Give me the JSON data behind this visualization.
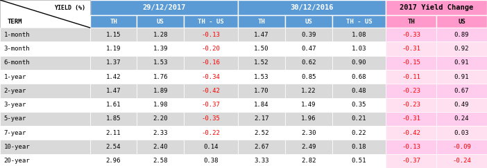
{
  "terms": [
    "1-month",
    "3-month",
    "6-month",
    "1-year",
    "2-year",
    "3-year",
    "5-year",
    "7-year",
    "10-year",
    "20-year"
  ],
  "col_2017_TH": [
    1.15,
    1.19,
    1.37,
    1.42,
    1.47,
    1.61,
    1.85,
    2.11,
    2.54,
    2.96
  ],
  "col_2017_US": [
    1.28,
    1.39,
    1.53,
    1.76,
    1.89,
    1.98,
    2.2,
    2.33,
    2.4,
    2.58
  ],
  "col_2017_THUS": [
    -0.13,
    -0.2,
    -0.16,
    -0.34,
    -0.42,
    -0.37,
    -0.35,
    -0.22,
    0.14,
    0.38
  ],
  "col_2016_TH": [
    1.47,
    1.5,
    1.52,
    1.53,
    1.7,
    1.84,
    2.17,
    2.52,
    2.67,
    3.33
  ],
  "col_2016_US": [
    0.39,
    0.47,
    0.62,
    0.85,
    1.22,
    1.49,
    1.96,
    2.3,
    2.49,
    2.82
  ],
  "col_2016_THUS": [
    1.08,
    1.03,
    0.9,
    0.68,
    0.48,
    0.35,
    0.21,
    0.22,
    0.18,
    0.51
  ],
  "col_chg_TH": [
    -0.33,
    -0.31,
    -0.15,
    -0.11,
    -0.23,
    -0.23,
    -0.31,
    -0.42,
    -0.13,
    -0.37
  ],
  "col_chg_US": [
    0.89,
    0.92,
    0.91,
    0.91,
    0.67,
    0.49,
    0.24,
    0.03,
    -0.09,
    -0.24
  ],
  "color_header1_main": "#5B9BD5",
  "color_header1_change": "#FF99CC",
  "color_header2_bg": "#5B9BD5",
  "color_header2_change_bg": "#FF99CC",
  "color_row_odd": "#D9D9D9",
  "color_row_even": "#FFFFFF",
  "color_term_col_odd": "#D9D9D9",
  "color_term_col_even": "#FFFFFF",
  "color_chg_odd": "#FFCCEE",
  "color_chg_even": "#FFDDEE",
  "color_negative": "#FF0000",
  "color_positive": "#000000",
  "fig_width": 7.02,
  "fig_height": 2.43,
  "dpi": 100
}
